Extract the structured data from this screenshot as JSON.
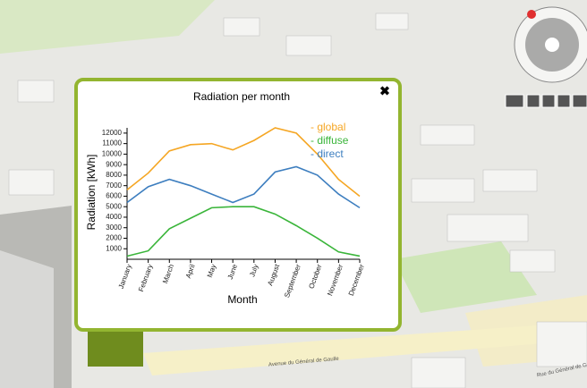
{
  "chart_data": {
    "type": "line",
    "title": "Radiation per month",
    "x_label": "Month",
    "y_label": "Radiation [kWh]",
    "categories": [
      "January",
      "February",
      "March",
      "April",
      "May",
      "June",
      "July",
      "August",
      "September",
      "October",
      "November",
      "December"
    ],
    "series": [
      {
        "name": "- global",
        "color": "#f5a623",
        "values": [
          6600,
          8200,
          10300,
          10900,
          11000,
          10400,
          11300,
          12500,
          12000,
          10000,
          7600,
          6000
        ]
      },
      {
        "name": "- diffuse",
        "color": "#3ab53a",
        "values": [
          300,
          800,
          2900,
          3900,
          4900,
          5000,
          5000,
          4300,
          3200,
          2000,
          700,
          300
        ]
      },
      {
        "name": "- direct",
        "color": "#3d7ebf",
        "values": [
          5400,
          6900,
          7600,
          7000,
          6200,
          5400,
          6200,
          8300,
          8800,
          8000,
          6200,
          4900
        ]
      }
    ],
    "ylim": [
      0,
      12500
    ],
    "yticks": [
      1000,
      2000,
      3000,
      4000,
      5000,
      6000,
      7000,
      8000,
      9000,
      10000,
      11000,
      12000
    ],
    "grid": false,
    "legend": "top-right"
  },
  "map_labels": [
    "Avenue du Général de Gaulle",
    "Rue du Général de Gaulle"
  ]
}
